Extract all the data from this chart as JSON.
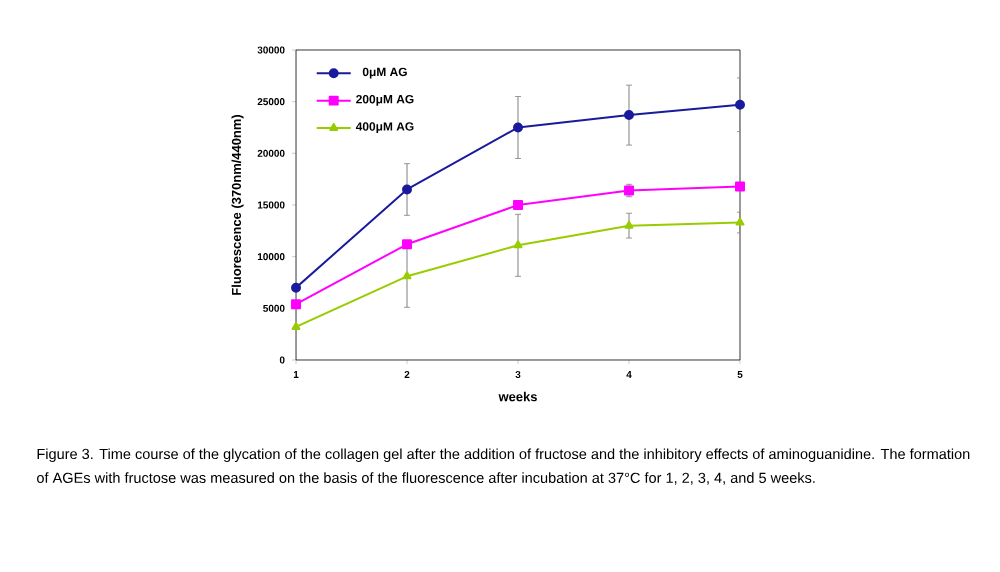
{
  "chart_data": {
    "type": "line",
    "xlabel": "weeks",
    "ylabel": "Fluorescence (370nm/440nm)",
    "x": [
      1,
      2,
      3,
      4,
      5
    ],
    "series": [
      {
        "name": "0μM AG",
        "color": "#1a1a9c",
        "marker": "circle",
        "values": [
          7000,
          16500,
          22500,
          23700,
          24700
        ],
        "errors": [
          null,
          2500,
          3000,
          2900,
          2600
        ]
      },
      {
        "name": "200μM AG",
        "color": "#ff00ff",
        "marker": "square",
        "values": [
          5400,
          11200,
          15000,
          16400,
          16800
        ],
        "errors": [
          null,
          null,
          null,
          600,
          null
        ]
      },
      {
        "name": "400μM AG",
        "color": "#99cc00",
        "marker": "triangle",
        "values": [
          3200,
          8100,
          11100,
          13000,
          13300
        ],
        "errors": [
          null,
          3000,
          3000,
          1200,
          1000
        ]
      }
    ],
    "xlim": [
      1,
      5
    ],
    "xticks": [
      1,
      2,
      3,
      4,
      5
    ],
    "ylim": [
      0,
      30000
    ],
    "yticks": [
      0,
      5000,
      10000,
      15000,
      20000,
      25000,
      30000
    ],
    "grid": false,
    "legend": "top left",
    "line_style": "solid",
    "annotations": [
      "Figure 3. Time course of the glycation of the collagen gel after the addition of fructose and the inhibitory effects of aminoguanidine. The formation of AGEs with fructose was measured on the basis of the fluorescence after incubation at 37°C for 1, 2, 3, 4, and 5 weeks."
    ]
  }
}
